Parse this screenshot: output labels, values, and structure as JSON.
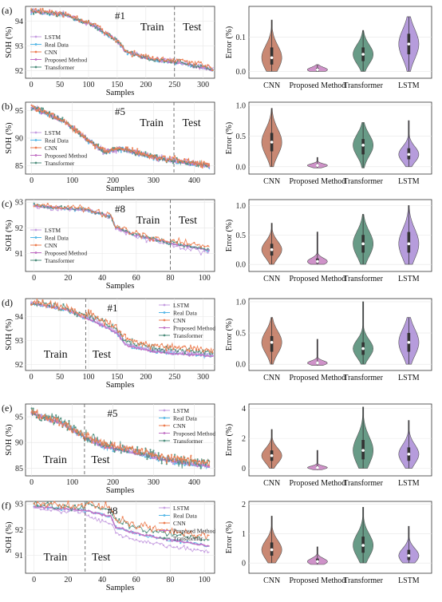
{
  "figure": {
    "colors": {
      "LSTM": "#c59de0",
      "Real Data": "#52b6e6",
      "CNN": "#ec7c4f",
      "Proposed Method": "#c16fc4",
      "Transformer": "#4e8e7c"
    },
    "violin_colors": {
      "CNN": "#c0735a",
      "Proposed Method": "#c77fc0",
      "Transformer": "#4e8a72",
      "LSTM": "#a98bd6"
    }
  },
  "chart_data": [
    {
      "panel": "(a)",
      "type": "line",
      "annotation": "#1",
      "region_labels": [
        "Train",
        "Test"
      ],
      "split_x": 250,
      "xlim": [
        -10,
        320
      ],
      "ylim": [
        91.7,
        94.6
      ],
      "xticks": [
        0,
        50,
        100,
        150,
        200,
        250,
        300
      ],
      "yticks": [
        92,
        93,
        94
      ],
      "xlabel": "Samples",
      "ylabel": "SOH (%)",
      "legend": [
        "LSTM",
        "Real Data",
        "CNN",
        "Proposed Method",
        "Transformer"
      ],
      "legend_pos": "center-left",
      "n": 320,
      "trend": [
        [
          0,
          94.4
        ],
        [
          60,
          94.25
        ],
        [
          110,
          93.8
        ],
        [
          150,
          93.2
        ],
        [
          165,
          92.75
        ],
        [
          210,
          92.45
        ],
        [
          250,
          92.35
        ],
        [
          320,
          92.0
        ]
      ],
      "noise": {
        "LSTM": 0.05,
        "Real Data": 0.04,
        "CNN": 0.06,
        "Proposed Method": 0.03,
        "Transformer": 0.05
      },
      "bias": {
        "LSTM": 0.05,
        "Real Data": 0,
        "CNN": 0.07,
        "Proposed Method": 0.01,
        "Transformer": 0.03
      }
    },
    {
      "panel": "(a)",
      "type": "violin",
      "ylabel": "Error (%)",
      "ylim": [
        -0.02,
        0.19
      ],
      "yticks": [
        0,
        0.1
      ],
      "yticklabels": [
        "0.0",
        "0.1"
      ],
      "categories": [
        "CNN",
        "Proposed Method",
        "Transformer",
        "LSTM"
      ],
      "violins": [
        {
          "min": 0.0,
          "max": 0.15,
          "median": 0.04,
          "q1": 0.02,
          "q3": 0.07
        },
        {
          "min": 0.0,
          "max": 0.02,
          "median": 0.005,
          "q1": 0.0,
          "q3": 0.01
        },
        {
          "min": 0.0,
          "max": 0.12,
          "median": 0.05,
          "q1": 0.03,
          "q3": 0.07
        },
        {
          "min": 0.0,
          "max": 0.16,
          "median": 0.08,
          "q1": 0.05,
          "q3": 0.11
        }
      ]
    },
    {
      "panel": "(b)",
      "type": "line",
      "annotation": "#5",
      "region_labels": [
        "Train",
        "Test"
      ],
      "split_x": 350,
      "xlim": [
        -15,
        450
      ],
      "ylim": [
        83.5,
        96.5
      ],
      "xticks": [
        0,
        100,
        200,
        300,
        400
      ],
      "yticks": [
        85,
        90,
        95
      ],
      "xlabel": "Samples",
      "ylabel": "SOH (%)",
      "legend": [
        "LSTM",
        "Real Data",
        "CNN",
        "Proposed Method",
        "Transformer"
      ],
      "legend_pos": "center-left",
      "n": 440,
      "trend": [
        [
          0,
          95.5
        ],
        [
          80,
          93.0
        ],
        [
          140,
          89.5
        ],
        [
          180,
          87.5
        ],
        [
          220,
          88.0
        ],
        [
          300,
          86.5
        ],
        [
          350,
          85.8
        ],
        [
          440,
          84.8
        ]
      ],
      "noise": {
        "LSTM": 0.25,
        "Real Data": 0.2,
        "CNN": 0.3,
        "Proposed Method": 0.15,
        "Transformer": 0.25
      },
      "bias": {
        "LSTM": 0.2,
        "Real Data": 0,
        "CNN": 0.25,
        "Proposed Method": 0.05,
        "Transformer": 0.15
      }
    },
    {
      "panel": "(b)",
      "type": "violin",
      "ylabel": "Error (%)",
      "ylim": [
        -0.12,
        1.05
      ],
      "yticks": [
        0,
        0.5,
        1
      ],
      "yticklabels": [
        "0.0",
        "0.5",
        "1.0"
      ],
      "categories": [
        "CNN",
        "Proposed Method",
        "Transformer",
        "LSTM"
      ],
      "violins": [
        {
          "min": 0.0,
          "max": 0.95,
          "median": 0.4,
          "q1": 0.25,
          "q3": 0.55
        },
        {
          "min": -0.02,
          "max": 0.15,
          "median": 0.02,
          "q1": 0.0,
          "q3": 0.04
        },
        {
          "min": -0.02,
          "max": 0.72,
          "median": 0.35,
          "q1": 0.2,
          "q3": 0.45
        },
        {
          "min": 0.0,
          "max": 0.75,
          "median": 0.2,
          "q1": 0.12,
          "q3": 0.3
        }
      ]
    },
    {
      "panel": "(c)",
      "type": "line",
      "annotation": "#8",
      "region_labels": [
        "Train",
        "Test"
      ],
      "split_x": 80,
      "xlim": [
        -5,
        106
      ],
      "ylim": [
        90.3,
        93.1
      ],
      "xticks": [
        0,
        20,
        40,
        60,
        80,
        100
      ],
      "yticks": [
        91,
        92,
        93
      ],
      "xlabel": "Samples",
      "ylabel": "SOH (%)",
      "legend": [
        "LSTM",
        "Real Data",
        "CNN",
        "Proposed Method",
        "Transformer"
      ],
      "legend_pos": "center-left",
      "n": 104,
      "trend": [
        [
          0,
          92.85
        ],
        [
          30,
          92.7
        ],
        [
          45,
          92.45
        ],
        [
          48,
          92.0
        ],
        [
          60,
          91.7
        ],
        [
          80,
          91.4
        ],
        [
          104,
          91.1
        ]
      ],
      "noise": {
        "LSTM": 0.05,
        "Real Data": 0.03,
        "CNN": 0.06,
        "Proposed Method": 0.02,
        "Transformer": 0.04
      },
      "bias": {
        "LSTM": -0.05,
        "Real Data": 0,
        "CNN": 0.08,
        "Proposed Method": 0.0,
        "Transformer": 0.03
      }
    },
    {
      "panel": "(c)",
      "type": "violin",
      "ylabel": "Error (%)",
      "ylim": [
        -0.12,
        1.1
      ],
      "yticks": [
        0,
        0.5,
        1
      ],
      "yticklabels": [
        "0.0",
        "0.5",
        "1.0"
      ],
      "categories": [
        "CNN",
        "Proposed Method",
        "Transformer",
        "LSTM"
      ],
      "violins": [
        {
          "min": 0.0,
          "max": 0.7,
          "median": 0.25,
          "q1": 0.15,
          "q3": 0.35
        },
        {
          "min": 0.0,
          "max": 0.55,
          "median": 0.05,
          "q1": 0.02,
          "q3": 0.1
        },
        {
          "min": 0.0,
          "max": 0.85,
          "median": 0.35,
          "q1": 0.2,
          "q3": 0.5
        },
        {
          "min": 0.0,
          "max": 1.0,
          "median": 0.35,
          "q1": 0.2,
          "q3": 0.55
        }
      ]
    },
    {
      "panel": "(d)",
      "type": "line",
      "annotation": "#1",
      "region_labels": [
        "Train",
        "Test"
      ],
      "split_x": 95,
      "xlim": [
        -10,
        320
      ],
      "ylim": [
        91.75,
        94.75
      ],
      "xticks": [
        0,
        50,
        100,
        150,
        200,
        250,
        300
      ],
      "yticks": [
        92,
        93,
        94
      ],
      "xlabel": "Samples",
      "ylabel": "SOH (%)",
      "legend": [
        "LSTM",
        "Real Data",
        "CNN",
        "Proposed Method",
        "Transformer"
      ],
      "legend_pos": "top-right",
      "n": 320,
      "trend": [
        [
          0,
          94.55
        ],
        [
          60,
          94.3
        ],
        [
          110,
          93.8
        ],
        [
          150,
          93.3
        ],
        [
          165,
          92.8
        ],
        [
          210,
          92.55
        ],
        [
          250,
          92.45
        ],
        [
          320,
          92.35
        ]
      ],
      "noise": {
        "LSTM": 0.03,
        "Real Data": 0.04,
        "CNN": 0.08,
        "Proposed Method": 0.02,
        "Transformer": 0.07
      },
      "bias": {
        "LSTM": 0.05,
        "Real Data": 0,
        "CNN": 0.15,
        "Proposed Method": 0.0,
        "Transformer": 0.1
      }
    },
    {
      "panel": "(d)",
      "type": "violin",
      "ylabel": "Error (%)",
      "ylim": [
        -0.1,
        1.05
      ],
      "yticks": [
        0,
        0.5,
        1
      ],
      "yticklabels": [
        "0.0",
        "0.5",
        "1.0"
      ],
      "categories": [
        "CNN",
        "Proposed Method",
        "Transformer",
        "LSTM"
      ],
      "violins": [
        {
          "min": 0.0,
          "max": 0.75,
          "median": 0.35,
          "q1": 0.2,
          "q3": 0.45
        },
        {
          "min": -0.02,
          "max": 0.4,
          "median": 0.02,
          "q1": 0.0,
          "q3": 0.04
        },
        {
          "min": 0.0,
          "max": 1.0,
          "median": 0.25,
          "q1": 0.15,
          "q3": 0.35
        },
        {
          "min": 0.0,
          "max": 0.75,
          "median": 0.35,
          "q1": 0.2,
          "q3": 0.5
        }
      ]
    },
    {
      "panel": "(e)",
      "type": "line",
      "annotation": "#5",
      "region_labels": [
        "Train",
        "Test"
      ],
      "split_x": 130,
      "xlim": [
        -15,
        450
      ],
      "ylim": [
        83.5,
        97.5
      ],
      "xticks": [
        0,
        100,
        200,
        300,
        400
      ],
      "yticks": [
        85,
        90,
        95
      ],
      "xlabel": "Samples",
      "ylabel": "SOH (%)",
      "legend": [
        "LSTM",
        "Real Data",
        "CNN",
        "Proposed Method",
        "Transformer"
      ],
      "legend_pos": "top-right",
      "n": 440,
      "trend": [
        [
          0,
          95.7
        ],
        [
          80,
          93.5
        ],
        [
          140,
          90.5
        ],
        [
          180,
          89.0
        ],
        [
          220,
          88.5
        ],
        [
          300,
          87.0
        ],
        [
          350,
          86.2
        ],
        [
          440,
          85.2
        ]
      ],
      "noise": {
        "LSTM": 0.3,
        "Real Data": 0.2,
        "CNN": 0.45,
        "Proposed Method": 0.15,
        "Transformer": 0.55
      },
      "bias": {
        "LSTM": 0.2,
        "Real Data": 0,
        "CNN": 0.4,
        "Proposed Method": 0.05,
        "Transformer": 0.3
      }
    },
    {
      "panel": "(e)",
      "type": "violin",
      "ylabel": "Error (%)",
      "ylim": [
        -0.5,
        4.3
      ],
      "yticks": [
        0,
        2,
        4
      ],
      "yticklabels": [
        "0",
        "2",
        "4"
      ],
      "categories": [
        "CNN",
        "Proposed Method",
        "Transformer",
        "LSTM"
      ],
      "violins": [
        {
          "min": 0.0,
          "max": 2.6,
          "median": 0.85,
          "q1": 0.5,
          "q3": 1.2
        },
        {
          "min": -0.1,
          "max": 1.2,
          "median": 0.05,
          "q1": 0.0,
          "q3": 0.15
        },
        {
          "min": 0.0,
          "max": 4.1,
          "median": 1.2,
          "q1": 0.6,
          "q3": 1.9
        },
        {
          "min": 0.0,
          "max": 3.2,
          "median": 0.95,
          "q1": 0.5,
          "q3": 1.4
        }
      ]
    },
    {
      "panel": "(f)",
      "type": "line",
      "annotation": "#8",
      "region_labels": [
        "Train",
        "Test"
      ],
      "split_x": 30,
      "xlim": [
        -5,
        106
      ],
      "ylim": [
        90.3,
        93.1
      ],
      "xticks": [
        0,
        20,
        40,
        60,
        80,
        100
      ],
      "yticks": [
        91,
        92,
        93
      ],
      "xlabel": "Samples",
      "ylabel": "SOH (%)",
      "legend": [
        "LSTM",
        "Real Data",
        "CNN",
        "Proposed Method",
        "Transformer"
      ],
      "legend_pos": "top-right",
      "n": 104,
      "trend": [
        [
          0,
          92.9
        ],
        [
          30,
          92.75
        ],
        [
          45,
          92.5
        ],
        [
          48,
          92.1
        ],
        [
          60,
          91.85
        ],
        [
          80,
          91.6
        ],
        [
          104,
          91.35
        ]
      ],
      "noise": {
        "LSTM": 0.04,
        "Real Data": 0.03,
        "CNN": 0.08,
        "Proposed Method": 0.02,
        "Transformer": 0.06
      },
      "bias": {
        "LSTM": -0.15,
        "Real Data": 0,
        "CNN": 0.2,
        "Proposed Method": 0.0,
        "Transformer": 0.15
      }
    },
    {
      "panel": "(f)",
      "type": "violin",
      "ylabel": "Error (%)",
      "ylim": [
        -0.35,
        2.1
      ],
      "yticks": [
        0,
        1,
        2
      ],
      "yticklabels": [
        "0",
        "1",
        "2"
      ],
      "categories": [
        "CNN",
        "Proposed Method",
        "Transformer",
        "LSTM"
      ],
      "violins": [
        {
          "min": 0.0,
          "max": 1.6,
          "median": 0.45,
          "q1": 0.25,
          "q3": 0.7
        },
        {
          "min": -0.05,
          "max": 0.55,
          "median": 0.05,
          "q1": 0.0,
          "q3": 0.15
        },
        {
          "min": 0.0,
          "max": 1.9,
          "median": 0.6,
          "q1": 0.35,
          "q3": 0.9
        },
        {
          "min": 0.0,
          "max": 1.25,
          "median": 0.25,
          "q1": 0.1,
          "q3": 0.45
        }
      ]
    }
  ]
}
